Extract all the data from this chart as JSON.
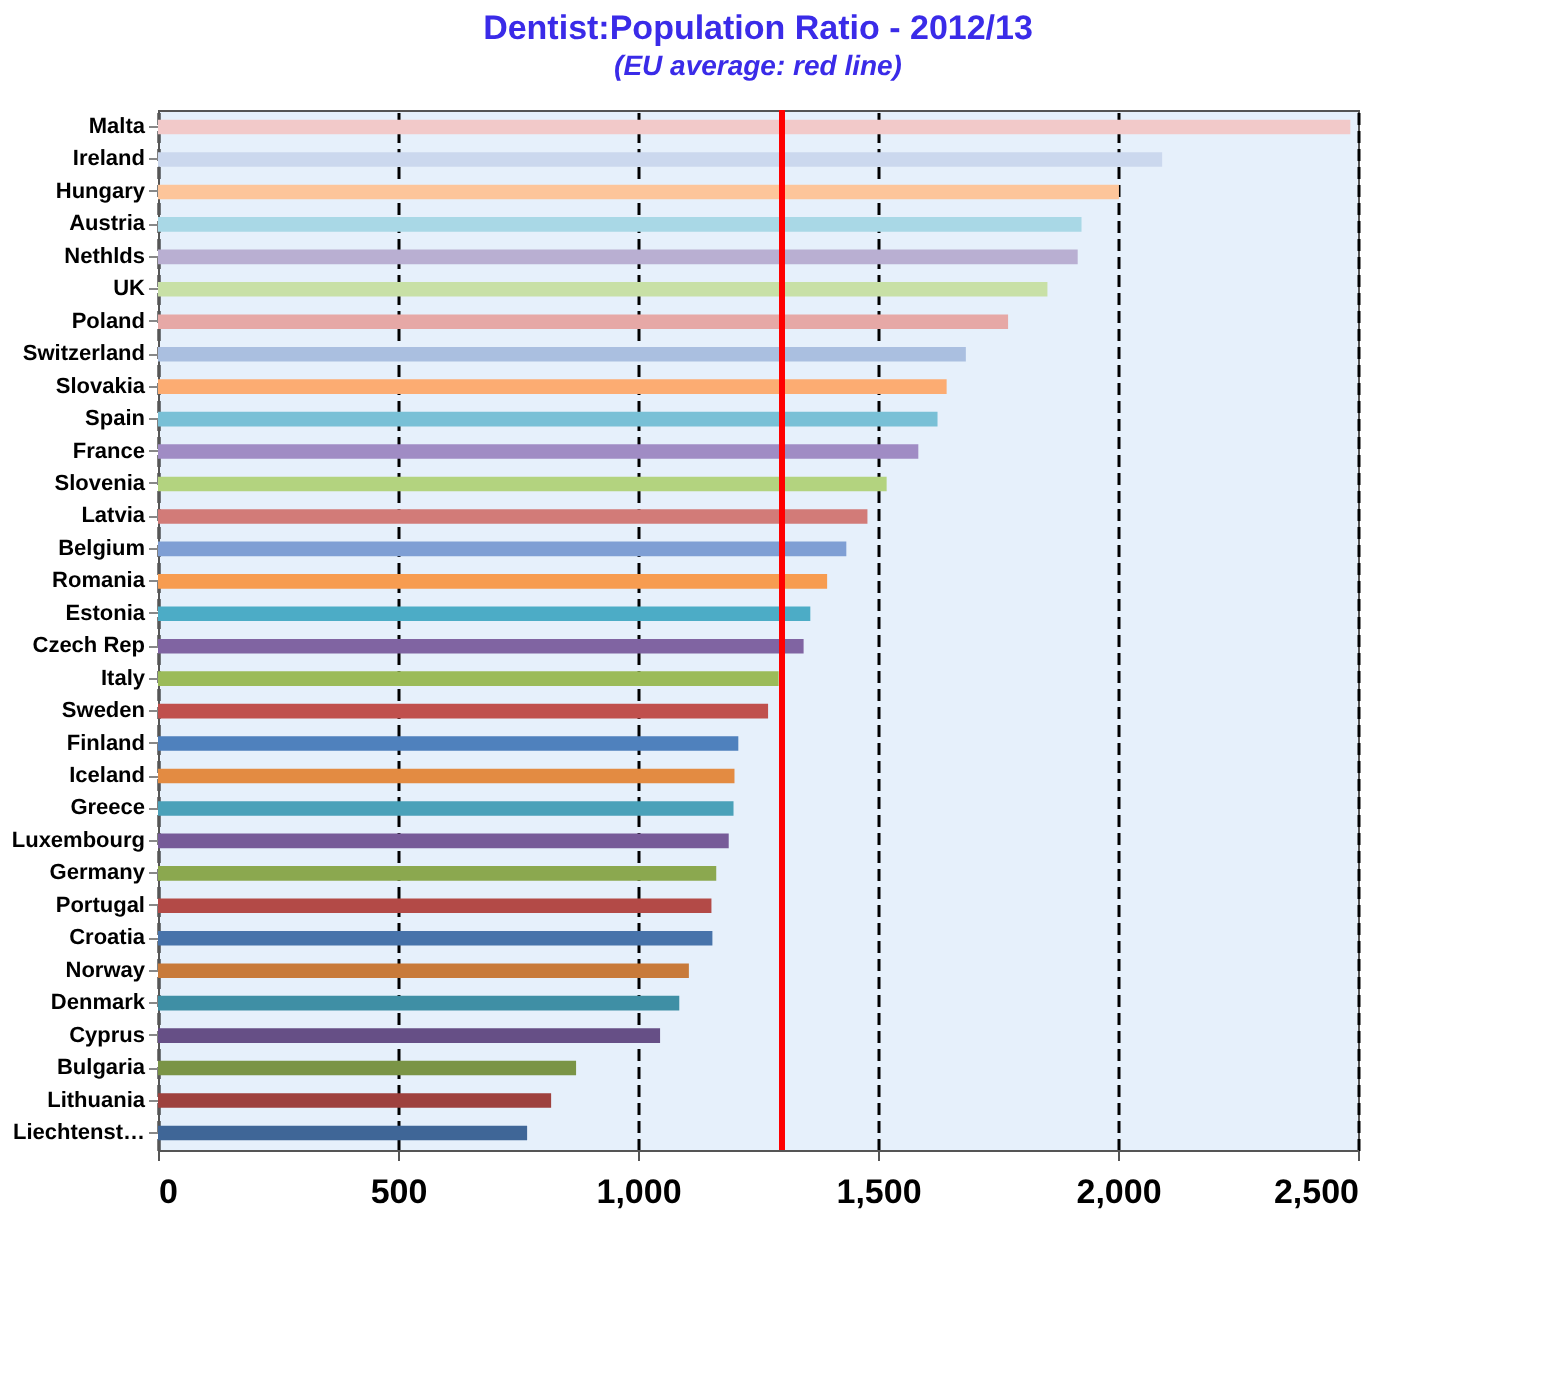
{
  "chart_data": {
    "type": "bar",
    "orientation": "horizontal",
    "title": "Dentist:Population  Ratio - 2012/13",
    "subtitle": "(EU average: red line)",
    "categories": [
      "Malta",
      "Ireland",
      "Hungary",
      "Austria",
      "Nethlds",
      "UK",
      "Poland",
      "Switzerland",
      "Slovakia",
      "Spain",
      "France",
      "Slovenia",
      "Latvia",
      "Belgium",
      "Romania",
      "Estonia",
      "Czech Rep",
      "Italy",
      "Sweden",
      "Finland",
      "Iceland",
      "Greece",
      "Luxembourg",
      "Germany",
      "Portugal",
      "Croatia",
      "Norway",
      "Denmark",
      "Cyprus",
      "Bulgaria",
      "Lithuania",
      "Liechtenst…"
    ],
    "values": [
      2484,
      2092,
      2002,
      1924,
      1916,
      1853,
      1771,
      1683,
      1643,
      1624,
      1584,
      1518,
      1478,
      1434,
      1394,
      1359,
      1345,
      1293,
      1271,
      1209,
      1201,
      1199,
      1189,
      1163,
      1153,
      1155,
      1106,
      1086,
      1046,
      871,
      819,
      769
    ],
    "colors": [
      "#f2c9c9",
      "#cbd8ee",
      "#fdc59a",
      "#a9d8e6",
      "#b9afd2",
      "#c8e0a6",
      "#e6a8a6",
      "#aabfe0",
      "#fcac72",
      "#79c0d6",
      "#a08cc4",
      "#b3d37f",
      "#d27b78",
      "#7f9fd4",
      "#f79c50",
      "#4cacc6",
      "#8064a2",
      "#9bbb59",
      "#c0504d",
      "#4f81bd",
      "#e38b42",
      "#4aa1b9",
      "#775b98",
      "#8ba84f",
      "#b34a47",
      "#4773aa",
      "#c87a3a",
      "#3f8fa5",
      "#664f86",
      "#7a9446",
      "#9e413e",
      "#3f6697"
    ],
    "xlim": [
      0,
      2500
    ],
    "xticks": [
      {
        "value": 0,
        "label": "0"
      },
      {
        "value": 500,
        "label": "500"
      },
      {
        "value": 1000,
        "label": "1,000"
      },
      {
        "value": 1500,
        "label": "1,500"
      },
      {
        "value": 2000,
        "label": "2,000"
      },
      {
        "value": 2500,
        "label": "2,500"
      }
    ],
    "grid": "x",
    "ref_lines": [
      {
        "axis": "x",
        "value": 1300,
        "color": "#ff0000"
      }
    ]
  }
}
